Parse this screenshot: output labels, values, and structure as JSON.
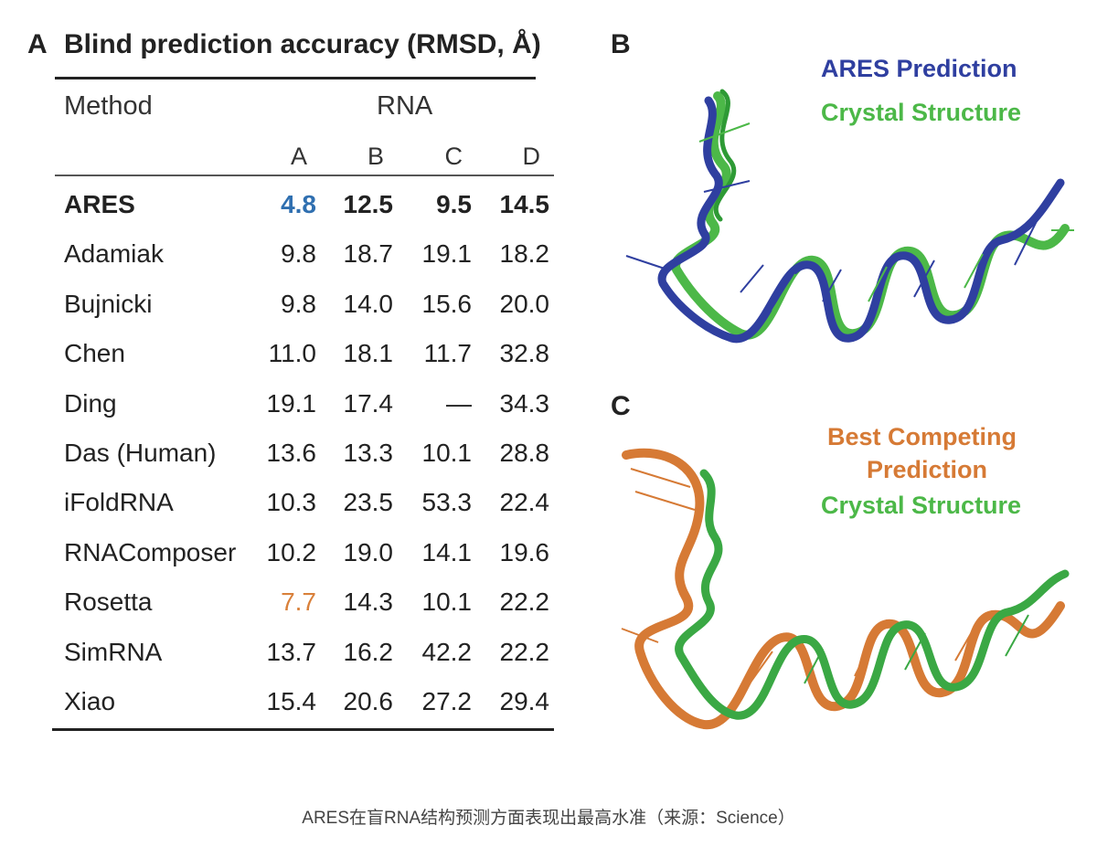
{
  "panels": {
    "a": "A",
    "b": "B",
    "c": "C"
  },
  "table": {
    "title": "Blind prediction accuracy (RMSD, Å)",
    "method_header": "Method",
    "group_header": "RNA",
    "columns": [
      "A",
      "B",
      "C",
      "D"
    ],
    "rows": [
      {
        "method": "ARES",
        "values": [
          "4.8",
          "12.5",
          "9.5",
          "14.5"
        ],
        "bold": true,
        "highlight_col": 0,
        "highlight_color": "#2f6fb0"
      },
      {
        "method": "Adamiak",
        "values": [
          "9.8",
          "18.7",
          "19.1",
          "18.2"
        ]
      },
      {
        "method": "Bujnicki",
        "values": [
          "9.8",
          "14.0",
          "15.6",
          "20.0"
        ]
      },
      {
        "method": "Chen",
        "values": [
          "11.0",
          "18.1",
          "11.7",
          "32.8"
        ]
      },
      {
        "method": "Ding",
        "values": [
          "19.1",
          "17.4",
          "—",
          "34.3"
        ]
      },
      {
        "method": "Das (Human)",
        "values": [
          "13.6",
          "13.3",
          "10.1",
          "28.8"
        ]
      },
      {
        "method": "iFoldRNA",
        "values": [
          "10.3",
          "23.5",
          "53.3",
          "22.4"
        ]
      },
      {
        "method": "RNAComposer",
        "values": [
          "10.2",
          "19.0",
          "14.1",
          "19.6"
        ]
      },
      {
        "method": "Rosetta",
        "values": [
          "7.7",
          "14.3",
          "10.1",
          "22.2"
        ],
        "highlight_col": 0,
        "highlight_color": "#d9803a"
      },
      {
        "method": "SimRNA",
        "values": [
          "13.7",
          "16.2",
          "42.2",
          "22.2"
        ]
      },
      {
        "method": "Xiao",
        "values": [
          "15.4",
          "20.6",
          "27.2",
          "29.4"
        ]
      }
    ]
  },
  "panel_b": {
    "legend_1": "ARES Prediction",
    "legend_2": "Crystal Structure",
    "color_1": "#2f3fa0",
    "color_2": "#4cb848"
  },
  "panel_c": {
    "legend_1a": "Best Competing",
    "legend_1b": "Prediction",
    "legend_2": "Crystal Structure",
    "color_1": "#d67a35",
    "color_2": "#4cb848"
  },
  "caption": "ARES在盲RNA结构预测方面表现出最高水准（来源：Science）"
}
